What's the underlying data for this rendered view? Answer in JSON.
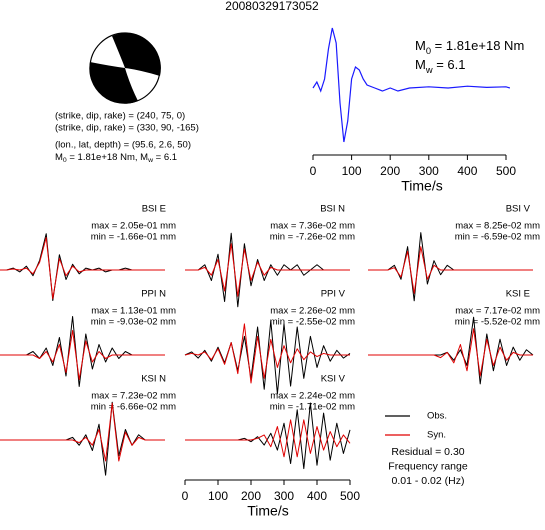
{
  "chart_data": [
    {
      "type": "line",
      "title": "20080329173052",
      "focal_texts": [
        "(strike, dip, rake) = (240, 75, 0)",
        "(strike, dip, rake) = (330, 90, -165)",
        "(lon., lat, depth) = (95.6, 2.6, 50)"
      ],
      "moment_line": [
        {
          "text": "M"
        },
        {
          "sub": "0"
        },
        {
          "text": " = 1.81e+18 Nm, "
        },
        {
          "text": "M"
        },
        {
          "sub": "w"
        },
        {
          "text": " = 6.1"
        }
      ],
      "moment_label": [
        {
          "text": "M"
        },
        {
          "sub": "0"
        },
        {
          "text": " = 1.81e+18 Nm"
        }
      ],
      "magnitude_label": [
        {
          "text": "M"
        },
        {
          "sub": "w"
        },
        {
          "text": " = 6.1"
        }
      ],
      "x": [
        0,
        10,
        20,
        30,
        40,
        50,
        60,
        70,
        80,
        90,
        100,
        110,
        120,
        130,
        140,
        160,
        180,
        200,
        220,
        250,
        300,
        350,
        400,
        450,
        500,
        510
      ],
      "values": [
        -0.05,
        0.05,
        -0.1,
        0.1,
        0.6,
        0.95,
        0.7,
        -0.3,
        -0.95,
        -0.6,
        0.1,
        0.3,
        0.25,
        0.1,
        0.0,
        -0.05,
        -0.1,
        -0.05,
        -0.1,
        -0.05,
        -0.03,
        -0.05,
        -0.02,
        -0.04,
        -0.03,
        -0.05
      ],
      "color": "#1a1aff",
      "xlim": [
        0,
        510
      ],
      "ylim": [
        -1,
        1
      ],
      "xticks": [
        0,
        100,
        200,
        300,
        400,
        500
      ],
      "xlabel": "Time/s"
    },
    {
      "type": "line",
      "title": "BSI E",
      "annotations": [
        "max = 2.05e-01 mm",
        "min = -1.66e-01 mm"
      ],
      "x": [
        0,
        20,
        40,
        60,
        80,
        100,
        120,
        140,
        160,
        180,
        200,
        220,
        240,
        260,
        280,
        300,
        320,
        340,
        360,
        380,
        400,
        420,
        440,
        460,
        480,
        500
      ],
      "xlim": [
        0,
        510
      ],
      "ylim": [
        -0.22,
        0.22
      ],
      "series": [
        {
          "name": "Obs.",
          "color": "#000000",
          "values": [
            0,
            0,
            0.01,
            -0.01,
            0.02,
            -0.03,
            0.05,
            0.19,
            -0.16,
            0.08,
            -0.05,
            0.03,
            -0.02,
            0.01,
            0,
            0.01,
            -0.01,
            0,
            0,
            0.01,
            0,
            0,
            0,
            0,
            0,
            0
          ]
        },
        {
          "name": "Syn.",
          "color": "#e00000",
          "values": [
            0,
            0,
            0.005,
            0,
            0.01,
            -0.02,
            0.04,
            0.17,
            -0.15,
            0.06,
            -0.03,
            0.02,
            -0.01,
            0,
            0,
            0,
            0,
            0,
            0,
            0,
            0,
            0,
            0,
            0,
            0,
            0
          ]
        }
      ]
    },
    {
      "type": "line",
      "title": "BSI N",
      "annotations": [
        "max = 7.36e-02 mm",
        "min = -7.26e-02 mm"
      ],
      "x": [
        0,
        20,
        40,
        60,
        80,
        100,
        120,
        140,
        160,
        180,
        200,
        220,
        240,
        260,
        280,
        300,
        320,
        340,
        360,
        380,
        400,
        420,
        440,
        460,
        480,
        500
      ],
      "xlim": [
        0,
        510
      ],
      "ylim": [
        -0.08,
        0.08
      ],
      "series": [
        {
          "name": "Obs.",
          "color": "#000000",
          "values": [
            0,
            0,
            0,
            0.01,
            -0.02,
            0.03,
            -0.06,
            0.07,
            -0.07,
            0.05,
            -0.03,
            0.02,
            -0.02,
            0.01,
            -0.01,
            0.01,
            0,
            0.01,
            -0.01,
            0,
            0.01,
            0,
            0,
            0,
            0,
            0
          ]
        },
        {
          "name": "Syn.",
          "color": "#e00000",
          "values": [
            0,
            0,
            0,
            0.005,
            -0.01,
            0.02,
            -0.04,
            0.05,
            -0.05,
            0.04,
            -0.02,
            0.015,
            -0.01,
            0.005,
            0,
            0,
            0,
            0,
            0,
            0,
            0,
            0,
            0,
            0,
            0,
            0
          ]
        }
      ]
    },
    {
      "type": "line",
      "title": "BSI V",
      "annotations": [
        "max = 8.25e-02 mm",
        "min = -6.59e-02 mm"
      ],
      "x": [
        0,
        20,
        40,
        60,
        80,
        100,
        120,
        140,
        160,
        180,
        200,
        220,
        240,
        260,
        280,
        300,
        320,
        340,
        360,
        380,
        400,
        420,
        440,
        460,
        480,
        500
      ],
      "xlim": [
        0,
        510
      ],
      "ylim": [
        -0.09,
        0.09
      ],
      "series": [
        {
          "name": "Obs.",
          "color": "#000000",
          "values": [
            0,
            0,
            0,
            0,
            0.01,
            -0.02,
            0.05,
            -0.066,
            0.08,
            -0.03,
            0.02,
            -0.01,
            0.01,
            0,
            0,
            0,
            0,
            0,
            0,
            0,
            0,
            0,
            0,
            0,
            0,
            0
          ]
        },
        {
          "name": "Syn.",
          "color": "#e00000",
          "values": [
            0,
            0,
            0,
            0,
            0.005,
            -0.015,
            0.04,
            -0.05,
            0.05,
            -0.02,
            0.01,
            0,
            0,
            0,
            0,
            0,
            0,
            0,
            0,
            0,
            0,
            0,
            0,
            0,
            0,
            0
          ]
        }
      ]
    },
    {
      "type": "line",
      "title": "PPI N",
      "annotations": [
        "max = 1.13e-01 mm",
        "min = -9.03e-02 mm"
      ],
      "x": [
        0,
        20,
        40,
        60,
        80,
        100,
        120,
        140,
        160,
        180,
        200,
        220,
        240,
        260,
        280,
        300,
        320,
        340,
        360,
        380,
        400,
        420,
        440,
        460,
        480,
        500
      ],
      "xlim": [
        0,
        510
      ],
      "ylim": [
        -0.12,
        0.12
      ],
      "series": [
        {
          "name": "Obs.",
          "color": "#000000",
          "values": [
            0,
            0,
            0,
            0,
            0,
            0.01,
            -0.01,
            0.02,
            -0.03,
            0.05,
            -0.06,
            0.11,
            -0.09,
            0.06,
            -0.04,
            0.03,
            -0.02,
            0.02,
            -0.01,
            0.01,
            0,
            0,
            0,
            0,
            0,
            0
          ]
        },
        {
          "name": "Syn.",
          "color": "#e00000",
          "values": [
            0,
            0,
            0,
            0,
            0,
            0,
            -0.01,
            0.01,
            -0.02,
            0.03,
            -0.05,
            0.07,
            -0.07,
            0.04,
            -0.02,
            0.01,
            -0.01,
            0,
            0,
            0,
            0,
            0,
            0,
            0,
            0,
            0
          ]
        }
      ]
    },
    {
      "type": "line",
      "title": "PPI V",
      "annotations": [
        "max = 2.26e-02 mm",
        "min = -2.55e-02 mm"
      ],
      "x": [
        0,
        20,
        40,
        60,
        80,
        100,
        120,
        140,
        160,
        180,
        200,
        220,
        240,
        260,
        280,
        300,
        320,
        340,
        360,
        380,
        400,
        420,
        440,
        460,
        480,
        500
      ],
      "xlim": [
        0,
        510
      ],
      "ylim": [
        -0.027,
        0.027
      ],
      "series": [
        {
          "name": "Obs.",
          "color": "#000000",
          "values": [
            0,
            0.002,
            -0.002,
            0.003,
            -0.004,
            0.005,
            -0.005,
            0.008,
            -0.01,
            0.012,
            -0.015,
            0.018,
            -0.022,
            0.022,
            -0.025,
            0.02,
            -0.02,
            0.018,
            -0.015,
            0.012,
            -0.008,
            0.006,
            -0.004,
            0.003,
            -0.002,
            0.001
          ]
        },
        {
          "name": "Syn.",
          "color": "#e00000",
          "values": [
            0,
            0.001,
            0,
            0.002,
            -0.003,
            0.004,
            -0.006,
            0.008,
            -0.012,
            0.02,
            -0.018,
            0.012,
            -0.015,
            0.01,
            -0.008,
            0.006,
            -0.005,
            0.004,
            -0.003,
            0.002,
            -0.001,
            0.001,
            0,
            0,
            0,
            0
          ]
        }
      ]
    },
    {
      "type": "line",
      "title": "KSI E",
      "annotations": [
        "max = 7.17e-02 mm",
        "min = -5.52e-02 mm"
      ],
      "x": [
        0,
        20,
        40,
        60,
        80,
        100,
        120,
        140,
        160,
        180,
        200,
        220,
        240,
        260,
        280,
        300,
        320,
        340,
        360,
        380,
        400,
        420,
        440,
        460,
        480,
        500
      ],
      "xlim": [
        0,
        510
      ],
      "ylim": [
        -0.08,
        0.08
      ],
      "series": [
        {
          "name": "Obs.",
          "color": "#000000",
          "values": [
            0,
            0,
            0,
            0,
            0,
            0,
            0,
            0,
            0,
            0,
            0,
            0,
            0.005,
            -0.01,
            0.01,
            -0.02,
            0.072,
            -0.055,
            0.04,
            -0.03,
            0.03,
            -0.02,
            0.015,
            -0.01,
            0.01,
            0
          ]
        },
        {
          "name": "Syn.",
          "color": "#e00000",
          "values": [
            0,
            0,
            0,
            0,
            0,
            0,
            0,
            0,
            0,
            0,
            0,
            -0.005,
            0.005,
            -0.015,
            0.02,
            -0.03,
            0.05,
            -0.04,
            0.03,
            -0.02,
            0.015,
            -0.01,
            0.005,
            0,
            0,
            0
          ]
        }
      ]
    },
    {
      "type": "line",
      "title": "KSI N",
      "annotations": [
        "max = 7.23e-02 mm",
        "min = -6.66e-02 mm"
      ],
      "x": [
        0,
        20,
        40,
        60,
        80,
        100,
        120,
        140,
        160,
        180,
        200,
        220,
        240,
        260,
        280,
        300,
        320,
        340,
        360,
        380,
        400,
        420,
        440,
        460,
        480,
        500
      ],
      "xlim": [
        0,
        510
      ],
      "ylim": [
        -0.08,
        0.08
      ],
      "series": [
        {
          "name": "Obs.",
          "color": "#000000",
          "values": [
            0,
            0,
            0,
            0,
            0,
            0,
            0,
            0,
            0,
            0,
            0,
            0.005,
            -0.01,
            0.01,
            -0.02,
            0.03,
            -0.067,
            0.072,
            -0.03,
            0.02,
            -0.01,
            0.01,
            0,
            0,
            0,
            0
          ]
        },
        {
          "name": "Syn.",
          "color": "#e00000",
          "values": [
            0,
            0,
            0,
            0,
            0,
            0,
            0,
            0,
            0,
            0,
            0,
            0,
            -0.005,
            0.005,
            -0.01,
            0.02,
            -0.04,
            0.07,
            -0.04,
            0.015,
            -0.01,
            0.005,
            0,
            0,
            0,
            0
          ]
        }
      ]
    },
    {
      "type": "line",
      "title": "KSI V",
      "annotations": [
        "max = 2.24e-02 mm",
        "min = -1.71e-02 mm"
      ],
      "x": [
        0,
        20,
        40,
        60,
        80,
        100,
        120,
        140,
        160,
        180,
        200,
        220,
        240,
        260,
        280,
        300,
        320,
        340,
        360,
        380,
        400,
        420,
        440,
        460,
        480,
        500
      ],
      "xlim": [
        0,
        510
      ],
      "ylim": [
        -0.025,
        0.025
      ],
      "xticks": [
        0,
        100,
        200,
        300,
        400,
        500
      ],
      "xlabel": "Time/s",
      "notes": [
        "Residual = 0.30",
        "Frequency range",
        "0.01 - 0.02 (Hz)"
      ],
      "series": [
        {
          "name": "Obs.",
          "color": "#000000",
          "values": [
            0,
            0,
            0,
            0,
            0,
            0,
            0,
            0,
            0,
            0.001,
            -0.001,
            0.002,
            -0.003,
            0.004,
            -0.006,
            0.01,
            -0.014,
            0.018,
            -0.017,
            0.022,
            -0.015,
            0.016,
            -0.012,
            0.01,
            -0.008,
            0.006
          ]
        },
        {
          "name": "Syn.",
          "color": "#e00000",
          "values": [
            0,
            0,
            0,
            0,
            0,
            0,
            0,
            0,
            0,
            0,
            0,
            0.001,
            0.003,
            -0.004,
            0.008,
            -0.01,
            0.012,
            -0.01,
            0.012,
            -0.008,
            0.008,
            -0.006,
            0.005,
            -0.004,
            0.003,
            -0.002
          ]
        }
      ]
    }
  ]
}
